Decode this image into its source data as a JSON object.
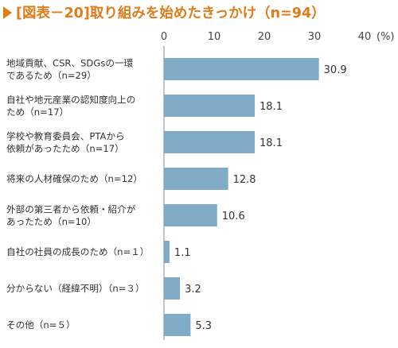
{
  "chart_data": {
    "type": "bar",
    "orientation": "horizontal",
    "title": "[図表－20]取り組みを始めたきっかけ（n=94）",
    "xlabel": "",
    "ylabel": "",
    "unit": "(%)",
    "xlim": [
      0,
      40
    ],
    "ticks": [
      "0",
      "10",
      "20",
      "30",
      "40"
    ],
    "grid": false,
    "colors": {
      "bar": "#7fabc7",
      "title": "#e07b1a",
      "axis": "#888888"
    },
    "categories": [
      [
        "地域貢献、CSR、SDGsの一環",
        "であるため（n=29）"
      ],
      [
        "自社や地元産業の認知度向上の",
        "ため（n=17）"
      ],
      [
        "学校や教育委員会、PTAから",
        "依頼があったため（n=17）"
      ],
      [
        "将来の人材確保のため（n=12）"
      ],
      [
        "外部の第三者から依頼・紹介が",
        "あったため（n=10）"
      ],
      [
        "自社の社員の成長のため（n=１）"
      ],
      [
        "分からない（経緯不明）（n=３）"
      ],
      [
        "その他（n=５）"
      ]
    ],
    "values": [
      30.9,
      18.1,
      18.1,
      12.8,
      10.6,
      1.1,
      3.2,
      5.3
    ],
    "value_labels": [
      "30.9",
      "18.1",
      "18.1",
      "12.8",
      "10.6",
      "1.1",
      "3.2",
      "5.3"
    ]
  }
}
